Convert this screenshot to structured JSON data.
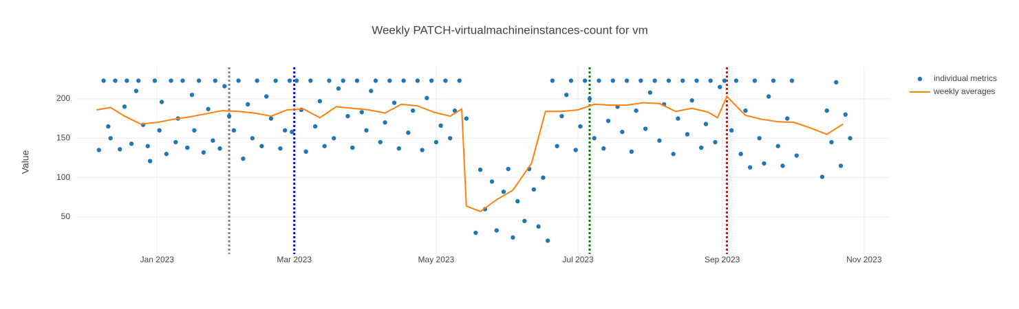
{
  "chart_data": {
    "type": "scatter-line",
    "title": "Weekly PATCH-virtualmachineinstances-count for vm",
    "y_label": "Value",
    "xlim": [
      -35,
      315
    ],
    "xticks": [
      {
        "value": 0,
        "label": "Jan 2023"
      },
      {
        "value": 59,
        "label": "Mar 2023"
      },
      {
        "value": 120,
        "label": "May 2023"
      },
      {
        "value": 181,
        "label": "Jul 2023"
      },
      {
        "value": 243,
        "label": "Sep 2023"
      },
      {
        "value": 304,
        "label": "Nov 2023"
      }
    ],
    "ylim": [
      3,
      240
    ],
    "yticks": [
      50,
      100,
      150,
      200
    ],
    "grid": true,
    "legend": "top-right",
    "vlines": [
      {
        "x": 31,
        "color": "#808080"
      },
      {
        "x": 59,
        "color": "#0000cd"
      },
      {
        "x": 186,
        "color": "#008000"
      },
      {
        "x": 245,
        "color": "#ff0000"
      }
    ],
    "series": [
      {
        "name": "individual metrics",
        "kind": "markers",
        "color": "#1f77b4",
        "x": [
          -25,
          -23,
          -21,
          -20,
          -18,
          -16,
          -14,
          -13,
          -11,
          -9,
          -8,
          -6,
          -4,
          -3,
          -1,
          1,
          2,
          4,
          6,
          8,
          9,
          11,
          13,
          15,
          16,
          18,
          20,
          22,
          24,
          25,
          27,
          29,
          31,
          33,
          35,
          37,
          39,
          41,
          43,
          45,
          47,
          49,
          51,
          53,
          55,
          57,
          58,
          60,
          62,
          64,
          66,
          68,
          70,
          72,
          74,
          76,
          78,
          80,
          82,
          84,
          86,
          88,
          90,
          92,
          94,
          96,
          98,
          100,
          102,
          104,
          106,
          108,
          110,
          112,
          114,
          116,
          118,
          120,
          122,
          124,
          126,
          128,
          130,
          133,
          137,
          139,
          141,
          144,
          146,
          149,
          151,
          153,
          155,
          158,
          160,
          162,
          164,
          166,
          168,
          170,
          172,
          174,
          176,
          178,
          180,
          182,
          184,
          186,
          188,
          190,
          192,
          194,
          196,
          198,
          200,
          202,
          204,
          206,
          208,
          210,
          212,
          214,
          216,
          218,
          220,
          222,
          224,
          226,
          228,
          230,
          232,
          234,
          236,
          238,
          240,
          242,
          244,
          247,
          249,
          251,
          253,
          255,
          257,
          259,
          261,
          263,
          265,
          267,
          269,
          271,
          273,
          275,
          286,
          288,
          290,
          292,
          294,
          296,
          298
        ],
        "values": [
          135,
          223,
          165,
          150,
          223,
          136,
          190,
          223,
          143,
          210,
          223,
          167,
          140,
          121,
          223,
          160,
          196,
          130,
          223,
          145,
          175,
          223,
          138,
          205,
          160,
          223,
          132,
          187,
          147,
          223,
          137,
          216,
          178,
          160,
          223,
          124,
          193,
          150,
          223,
          140,
          203,
          175,
          223,
          137,
          160,
          223,
          158,
          223,
          186,
          133,
          223,
          165,
          197,
          140,
          223,
          150,
          213,
          223,
          178,
          138,
          223,
          183,
          160,
          210,
          223,
          145,
          170,
          223,
          195,
          137,
          223,
          157,
          185,
          223,
          135,
          201,
          223,
          145,
          166,
          223,
          150,
          185,
          223,
          175,
          30,
          110,
          60,
          95,
          33,
          82,
          111,
          24,
          70,
          45,
          111,
          85,
          38,
          100,
          20,
          223,
          140,
          178,
          205,
          223,
          135,
          165,
          223,
          200,
          150,
          223,
          137,
          172,
          223,
          190,
          158,
          223,
          133,
          185,
          223,
          162,
          208,
          223,
          147,
          193,
          223,
          130,
          175,
          223,
          155,
          198,
          223,
          138,
          168,
          223,
          145,
          215,
          223,
          160,
          223,
          130,
          185,
          113,
          223,
          150,
          118,
          203,
          223,
          140,
          115,
          175,
          223,
          128,
          101,
          185,
          145,
          221,
          115,
          180,
          150
        ]
      },
      {
        "name": "weekly averages",
        "kind": "line",
        "color": "#ff7f0e",
        "x": [
          -26,
          -20,
          -14,
          -7,
          0,
          7,
          14,
          21,
          28,
          35,
          42,
          49,
          56,
          63,
          70,
          77,
          84,
          91,
          98,
          105,
          112,
          119,
          126,
          131,
          133,
          139,
          146,
          153,
          161,
          167,
          174,
          181,
          188,
          195,
          202,
          209,
          216,
          223,
          230,
          237,
          241,
          245,
          253,
          260,
          267,
          274,
          281,
          288,
          295
        ],
        "values": [
          186,
          189,
          178,
          168,
          170,
          174,
          177,
          181,
          185,
          184,
          182,
          178,
          186,
          187,
          176,
          190,
          188,
          186,
          182,
          193,
          191,
          183,
          178,
          187,
          64,
          57,
          72,
          84,
          118,
          184,
          184,
          186,
          193,
          192,
          192,
          195,
          194,
          184,
          188,
          183,
          176,
          203,
          179,
          174,
          171,
          170,
          163,
          155,
          168
        ]
      }
    ]
  }
}
